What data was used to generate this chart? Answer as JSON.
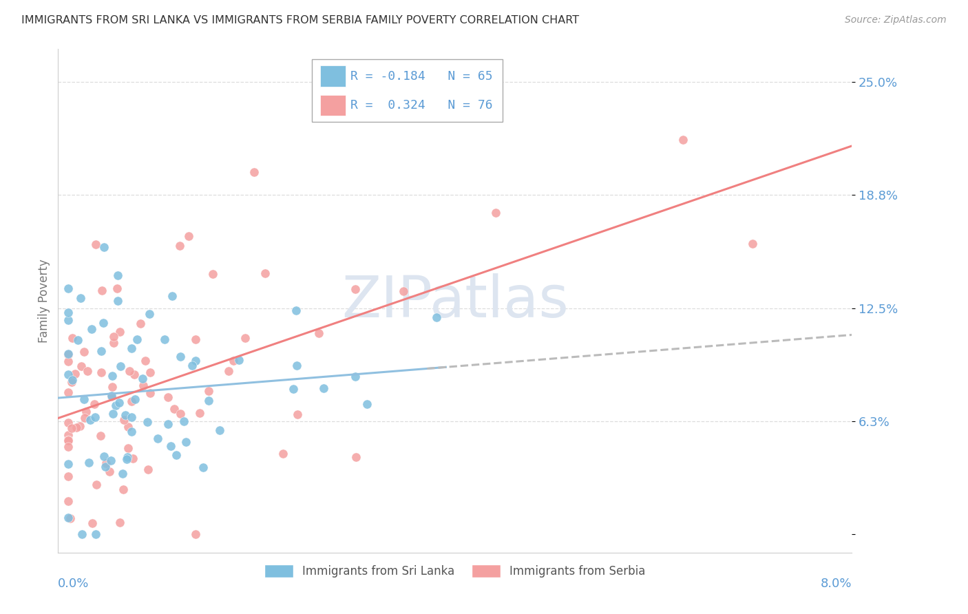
{
  "title": "IMMIGRANTS FROM SRI LANKA VS IMMIGRANTS FROM SERBIA FAMILY POVERTY CORRELATION CHART",
  "source": "Source: ZipAtlas.com",
  "ylabel": "Family Poverty",
  "y_ticks": [
    0.0,
    0.0625,
    0.125,
    0.1875,
    0.25
  ],
  "y_tick_labels": [
    "",
    "6.3%",
    "12.5%",
    "18.8%",
    "25.0%"
  ],
  "xmin": 0.0,
  "xmax": 0.08,
  "ymin": -0.01,
  "ymax": 0.268,
  "sri_lanka_color": "#7fbfdf",
  "serbia_color": "#f4a0a0",
  "sri_lanka_trend_color": "#90c0e0",
  "serbia_trend_color": "#f08080",
  "dashed_color": "#bbbbbb",
  "watermark_color": "#dde5f0",
  "grid_color": "#dddddd",
  "title_color": "#333333",
  "source_color": "#999999",
  "axis_label_color": "#5b9bd5",
  "ylabel_color": "#777777",
  "legend_text_color": "#5b9bd5",
  "R_sl": "-0.184",
  "N_sl": "65",
  "R_sr": "0.324",
  "N_sr": "76",
  "legend_label_sl": "Immigrants from Sri Lanka",
  "legend_label_sr": "Immigrants from Serbia",
  "background_color": "#ffffff"
}
